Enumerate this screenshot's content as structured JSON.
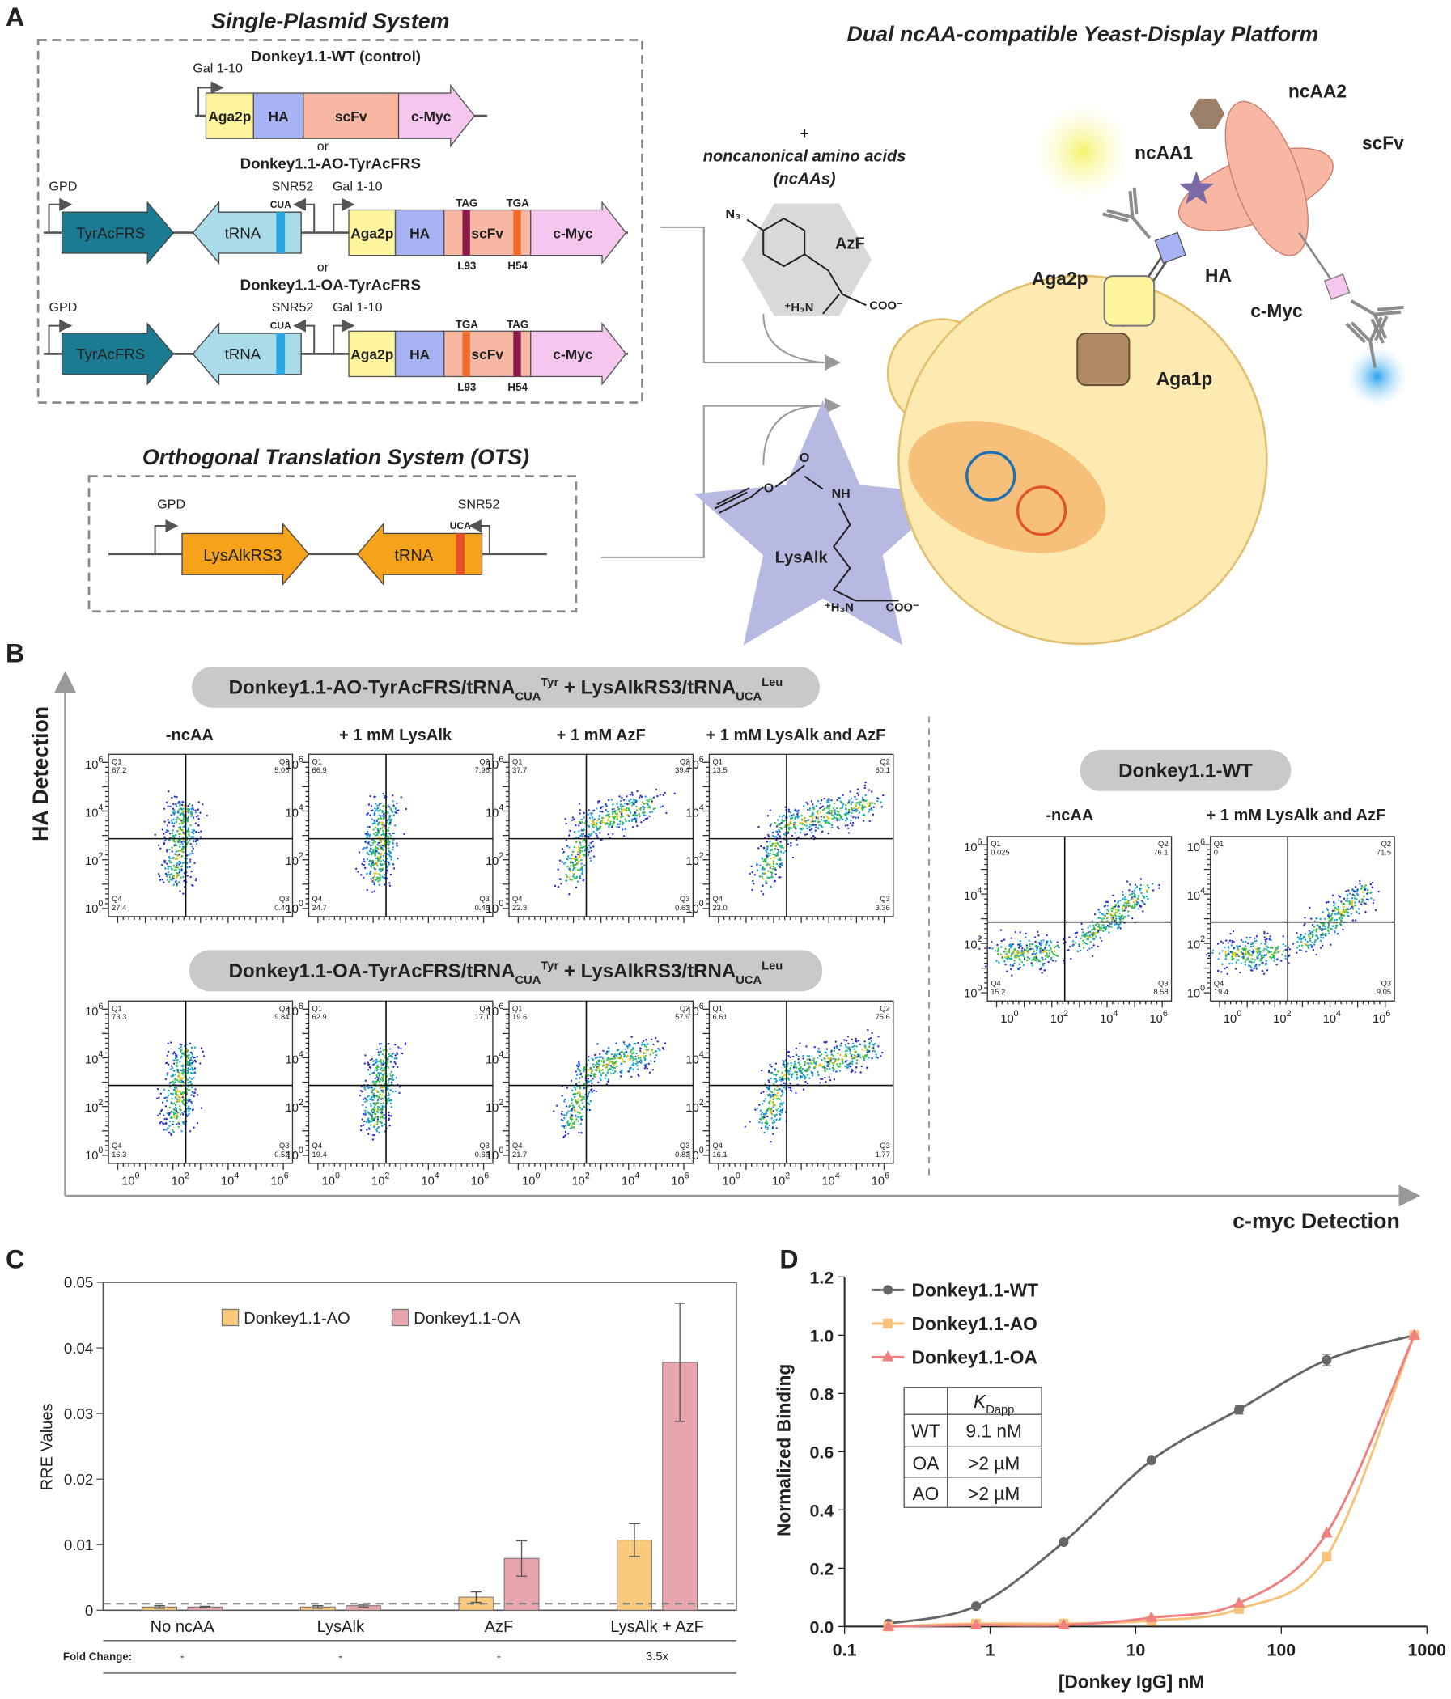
{
  "panel_a": {
    "label": "A",
    "single_plasmid": {
      "title": "Single-Plasmid System",
      "wt": {
        "name": "Donkey1.1-WT (control)",
        "promoter": "Gal 1-10",
        "parts": [
          "Aga2p",
          "HA",
          "scFv",
          "c-Myc"
        ]
      },
      "or": "or",
      "ao": {
        "name": "Donkey1.1-AO-TyrAcFRS",
        "gpd": "GPD",
        "rs": "TyrAcFRS",
        "trna": "tRNA",
        "anticodon": "CUA",
        "snr": "SNR52",
        "gal": "Gal 1-10",
        "parts": [
          "Aga2p",
          "HA",
          "scFv",
          "c-Myc"
        ],
        "codons": [
          {
            "name": "TAG",
            "color": "#8b1a4a"
          },
          {
            "name": "TGA",
            "color": "#f06a2b"
          }
        ],
        "sites": [
          "L93",
          "H54"
        ]
      },
      "or2": "or",
      "oa": {
        "name": "Donkey1.1-OA-TyrAcFRS",
        "gpd": "GPD",
        "rs": "TyrAcFRS",
        "trna": "tRNA",
        "anticodon": "CUA",
        "snr": "SNR52",
        "gal": "Gal 1-10",
        "parts": [
          "Aga2p",
          "HA",
          "scFv",
          "c-Myc"
        ],
        "codons": [
          {
            "name": "TGA",
            "color": "#f06a2b"
          },
          {
            "name": "TAG",
            "color": "#8b1a4a"
          }
        ],
        "sites": [
          "L93",
          "H54"
        ]
      }
    },
    "ots": {
      "title": "Orthogonal Translation System (OTS)",
      "gpd": "GPD",
      "rs": "LysAlkRS3",
      "trna": "tRNA",
      "anticodon": "UCA",
      "snr": "SNR52"
    },
    "ncaa": {
      "plus": "+",
      "line1": "noncanonical amino acids",
      "line2": "(ncAAs)",
      "azf": {
        "name": "AzF",
        "azide": "N₃",
        "amine": "⁺H₃N",
        "carboxyl": "COO⁻"
      },
      "lysalk": {
        "name": "LysAlk",
        "oxygen": "O",
        "nh": "NH",
        "amine": "⁺H₃N",
        "carboxyl": "COO⁻"
      }
    },
    "platform": {
      "title": "Dual ncAA-compatible Yeast-Display Platform",
      "ncaa2": "ncAA2",
      "ncaa1": "ncAA1",
      "scfv": "scFv",
      "ha": "HA",
      "aga2p": "Aga2p",
      "cmyc": "c-Myc",
      "aga1p": "Aga1p"
    }
  },
  "panel_b": {
    "label": "B",
    "y_axis": "HA Detection",
    "x_axis": "c-myc Detection",
    "tick_base": "10",
    "tick_exponents": [
      "0",
      "2",
      "4",
      "6"
    ],
    "quadrant_names": [
      "Q1",
      "Q2",
      "Q3",
      "Q4"
    ],
    "groups": [
      {
        "title": {
          "part1": "Donkey1.1-AO-TyrAcFRS/tRNA",
          "sub1": "CUA",
          "sup1": "Tyr",
          "part2": " + LysAlkRS3/tRNA",
          "sub2": "UCA",
          "sup2": "Leu"
        },
        "conditions": [
          "-ncAA",
          "+ 1 mM LysAlk",
          "+ 1 mM AzF",
          "+ 1 mM LysAlk and AzF"
        ],
        "plots": [
          [
            "67.2",
            "5.06",
            "0.40",
            "27.4"
          ],
          [
            "66.9",
            "7.96",
            "0.46",
            "24.7"
          ],
          [
            "37.7",
            "39.4",
            "0.63",
            "22.3"
          ],
          [
            "13.5",
            "60.1",
            "3.36",
            "23.0"
          ]
        ]
      },
      {
        "title": {
          "part1": "Donkey1.1-OA-TyrAcFRS/tRNA",
          "sub1": "CUA",
          "sup1": "Tyr",
          "part2": " + LysAlkRS3/tRNA",
          "sub2": "UCA",
          "sup2": "Leu"
        },
        "plots": [
          [
            "73.3",
            "9.84",
            "0.52",
            "16.3"
          ],
          [
            "62.9",
            "17.1",
            "0.63",
            "19.4"
          ],
          [
            "19.6",
            "57.9",
            "0.83",
            "21.7"
          ],
          [
            "6.61",
            "75.6",
            "1.77",
            "16.1"
          ]
        ]
      },
      {
        "title": {
          "part1": "Donkey1.1-WT"
        },
        "conditions": [
          "-ncAA",
          "+ 1 mM LysAlk and AzF"
        ],
        "plots": [
          [
            "0.025",
            "76.1",
            "8.58",
            "15.2"
          ],
          [
            "0",
            "71.5",
            "9.05",
            "19.4"
          ]
        ]
      }
    ]
  },
  "chart_data": [
    {
      "type": "bar",
      "label": "C",
      "ylabel": "RRE Values",
      "categories": [
        "No ncAA",
        "LysAlk",
        "AzF",
        "LysAlk + AzF"
      ],
      "ylim": [
        0,
        0.05
      ],
      "yticks": [
        0,
        0.01,
        0.02,
        0.03,
        0.04,
        0.05
      ],
      "legend": "top-left",
      "reference_line": 0.001,
      "series": [
        {
          "name": "Donkey1.1-AO",
          "color": "#f9c97c",
          "values": [
            0.0005,
            0.0005,
            0.002,
            0.0107
          ],
          "errors": [
            0.0002,
            0.0002,
            0.0008,
            0.0025
          ]
        },
        {
          "name": "Donkey1.1-OA",
          "color": "#e8a5ad",
          "values": [
            0.0005,
            0.0007,
            0.0079,
            0.0378
          ],
          "errors": [
            0.0001,
            0.0002,
            0.0027,
            0.009
          ]
        }
      ],
      "fold_change": {
        "label": "Fold Change:",
        "values": [
          "-",
          "-",
          "-",
          "3.5x"
        ]
      }
    },
    {
      "type": "scatter",
      "label": "D",
      "xlabel": "[Donkey IgG] nM",
      "ylabel": "Normalized Binding",
      "log_x": true,
      "xlim": [
        0.1,
        1000
      ],
      "xticks": [
        0.1,
        1,
        10,
        100,
        1000
      ],
      "ylim": [
        0,
        1.2
      ],
      "yticks": [
        {
          "value": 0,
          "label": "0.0"
        },
        0.2,
        0.4,
        0.6,
        0.8,
        {
          "value": 1,
          "label": "1.0"
        },
        1.2
      ],
      "legend": "top-left",
      "series": [
        {
          "name": "Donkey1.1-WT",
          "color": "#666666",
          "marker": "circle",
          "x": [
            0.2,
            0.8,
            3.2,
            12.8,
            51.2,
            204.8,
            819.2
          ],
          "values": [
            0.01,
            0.07,
            0.29,
            0.57,
            0.745,
            0.915,
            1.0
          ],
          "errors": [
            0,
            0,
            0,
            0,
            0.015,
            0.02,
            0
          ]
        },
        {
          "name": "Donkey1.1-AO",
          "color": "#f9c27b",
          "marker": "square",
          "x": [
            0.2,
            0.8,
            3.2,
            12.8,
            51.2,
            204.8,
            819.2
          ],
          "values": [
            0.0,
            0.01,
            0.01,
            0.02,
            0.06,
            0.24,
            1.0
          ]
        },
        {
          "name": "Donkey1.1-OA",
          "color": "#f08080",
          "marker": "triangle",
          "x": [
            0.2,
            0.8,
            3.2,
            12.8,
            51.2,
            204.8,
            819.2
          ],
          "values": [
            0.0,
            0.005,
            0.005,
            0.03,
            0.08,
            0.32,
            1.0
          ]
        }
      ],
      "table": {
        "symbol": "K",
        "subscript": "Dapp",
        "rows": [
          [
            "WT",
            "9.1 nM"
          ],
          [
            "OA",
            ">2 µM"
          ],
          [
            "AO",
            ">2 µM"
          ]
        ]
      }
    }
  ]
}
